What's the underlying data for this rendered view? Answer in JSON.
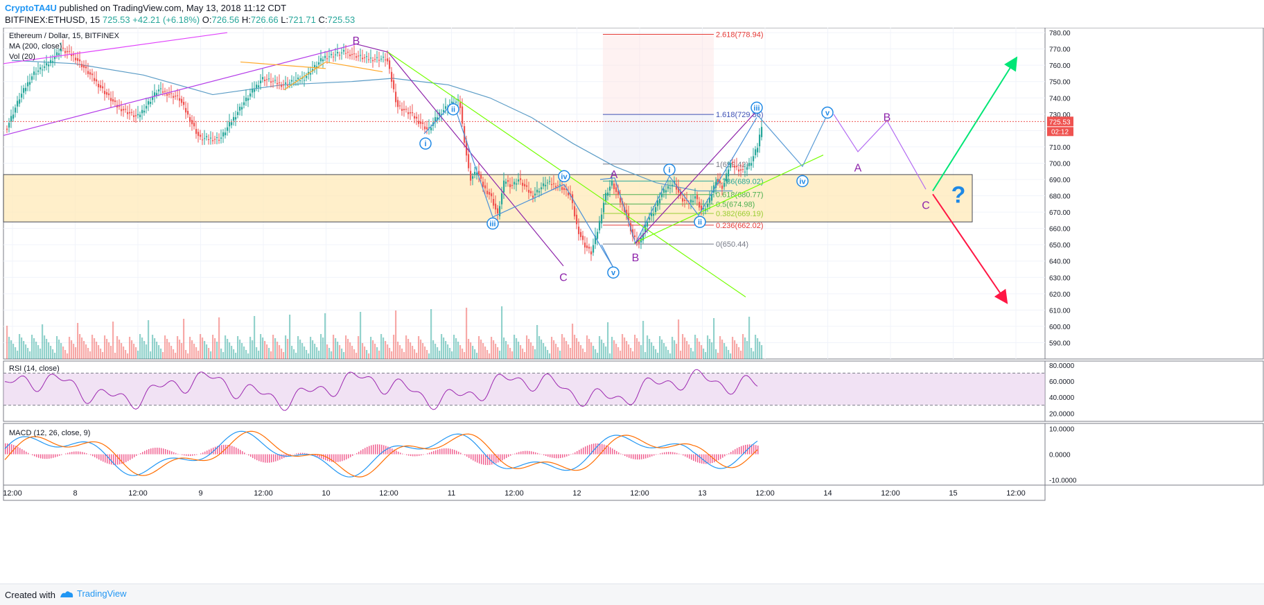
{
  "header": {
    "author": "CryptoTA4U",
    "published": "published on TradingView.com, May 13, 2018 11:12 CDT",
    "symbol": "BITFINEX:ETHUSD, 15",
    "last": "725.53",
    "change": "+42.21 (+6.18%)",
    "o_label": "O:",
    "o": "726.56",
    "h_label": "H:",
    "h": "726.66",
    "l_label": "L:",
    "l": "721.71",
    "c_label": "C:",
    "c": "725.53"
  },
  "footer": {
    "created_with": "Created with",
    "brand": "TradingView"
  },
  "colors": {
    "up": "#26a69a",
    "down": "#ef5350",
    "purple": "#8e24aa",
    "blue": "#1e88e5",
    "zone": "#ffe9b8",
    "accent": "#2196f3"
  },
  "chart_data": {
    "type": "line",
    "title": "Ethereum / Dollar, 15, BITFINEX",
    "indicators": [
      "MA (200, close)",
      "Vol (20)"
    ],
    "price_axis": {
      "ylim": [
        580,
        783
      ],
      "ticks": [
        780,
        770,
        760,
        750,
        740,
        730,
        720,
        710,
        700,
        690,
        680,
        670,
        660,
        650,
        640,
        630,
        620,
        610,
        600,
        590
      ]
    },
    "last_price_label": "725.53",
    "countdown_label": "02:12",
    "x_ticks": [
      "12:00",
      "8",
      "12:00",
      "9",
      "12:00",
      "10",
      "12:00",
      "11",
      "12:00",
      "12",
      "12:00",
      "13",
      "12:00",
      "14",
      "12:00",
      "15",
      "12:00"
    ],
    "price_path": {
      "x": [
        0,
        20,
        40,
        60,
        80,
        100,
        130,
        160,
        190,
        220,
        250,
        280,
        310,
        340,
        370,
        400,
        430,
        460,
        490,
        520,
        550,
        565,
        585,
        610,
        625,
        640,
        655,
        660,
        670,
        680,
        690,
        700,
        710,
        720,
        730,
        740,
        760,
        780,
        800,
        815,
        825,
        835,
        845,
        855,
        865,
        875,
        885,
        895,
        905,
        915,
        925,
        935,
        945,
        955,
        965,
        975,
        985,
        995,
        1005,
        1015,
        1025,
        1035,
        1045,
        1055,
        1065,
        1075,
        1085,
        1092
      ],
      "values": [
        720,
        740,
        755,
        760,
        770,
        765,
        750,
        735,
        728,
        745,
        740,
        715,
        715,
        735,
        752,
        748,
        752,
        765,
        768,
        764,
        764,
        735,
        730,
        720,
        730,
        736,
        738,
        720,
        690,
        695,
        685,
        680,
        668,
        690,
        686,
        690,
        680,
        688,
        686,
        680,
        660,
        650,
        645,
        660,
        680,
        688,
        678,
        670,
        655,
        650,
        665,
        670,
        680,
        685,
        688,
        678,
        675,
        680,
        670,
        676,
        690,
        685,
        700,
        697,
        695,
        700,
        710,
        726
      ]
    },
    "ma200": {
      "x": [
        10,
        100,
        200,
        300,
        400,
        500,
        560,
        640,
        700,
        760,
        820,
        880,
        940,
        1000,
        1050
      ],
      "values": [
        763,
        761,
        754,
        742,
        748,
        750,
        752,
        748,
        740,
        728,
        712,
        698,
        688,
        683,
        683
      ]
    },
    "zone": {
      "from": 664,
      "to": 693
    },
    "fibonacci": [
      {
        "label": "2.618(778.94)",
        "value": 778.94,
        "color": "#e53935"
      },
      {
        "label": "1.618(729.86)",
        "value": 729.86,
        "color": "#3f51b5"
      },
      {
        "label": "1(699.42)",
        "value": 699.42,
        "color": "#787b86"
      },
      {
        "label": "0.786(689.02)",
        "value": 689.02,
        "color": "#26a69a"
      },
      {
        "label": "0.618(680.77)",
        "value": 680.77,
        "color": "#4caf50"
      },
      {
        "label": "0.5(674.98)",
        "value": 674.98,
        "color": "#4caf50"
      },
      {
        "label": "0.382(669.19)",
        "value": 669.19,
        "color": "#9acd32"
      },
      {
        "label": "0.236(662.02)",
        "value": 662.02,
        "color": "#e53935"
      },
      {
        "label": "0(650.44)",
        "value": 650.44,
        "color": "#787b86"
      }
    ],
    "wave_labels": [
      {
        "text": "B",
        "x": 514,
        "y": 775,
        "style": "plain"
      },
      {
        "text": "ii",
        "x": 654,
        "y": 733,
        "style": "circle"
      },
      {
        "text": "i",
        "x": 614,
        "y": 712,
        "style": "circle"
      },
      {
        "text": "iii",
        "x": 711,
        "y": 663,
        "style": "circle"
      },
      {
        "text": "iv",
        "x": 814,
        "y": 692,
        "style": "circle"
      },
      {
        "text": "C",
        "x": 813,
        "y": 630,
        "style": "plain"
      },
      {
        "text": "v",
        "x": 885,
        "y": 633,
        "style": "circle"
      },
      {
        "text": "A",
        "x": 886,
        "y": 693,
        "style": "plain"
      },
      {
        "text": "B",
        "x": 917,
        "y": 642,
        "style": "plain"
      },
      {
        "text": "i",
        "x": 966,
        "y": 696,
        "style": "circle"
      },
      {
        "text": "ii",
        "x": 1010,
        "y": 664,
        "style": "circle"
      },
      {
        "text": "iii",
        "x": 1092,
        "y": 734,
        "style": "circle"
      },
      {
        "text": "v",
        "x": 1194,
        "y": 731,
        "style": "circle"
      },
      {
        "text": "iv",
        "x": 1158,
        "y": 689,
        "style": "circle"
      },
      {
        "text": "A",
        "x": 1238,
        "y": 697,
        "style": "plain"
      },
      {
        "text": "B",
        "x": 1280,
        "y": 728,
        "style": "plain"
      },
      {
        "text": "C",
        "x": 1336,
        "y": 674,
        "style": "plain"
      },
      {
        "text": "?",
        "x": 1383,
        "y": 680,
        "style": "question"
      }
    ],
    "rsi": {
      "label": "RSI (14, close)",
      "ylim": [
        10,
        85
      ],
      "ticks": [
        "80.0000",
        "60.0000",
        "40.0000",
        "20.0000"
      ],
      "tick_values": [
        80,
        60,
        40,
        20
      ],
      "band": [
        30,
        70
      ]
    },
    "macd": {
      "label": "MACD (12, 26, close, 9)",
      "ylim": [
        -12,
        12
      ],
      "ticks": [
        "10.0000",
        "0.0000",
        "-10.0000"
      ],
      "tick_values": [
        10,
        0,
        -10
      ]
    }
  }
}
